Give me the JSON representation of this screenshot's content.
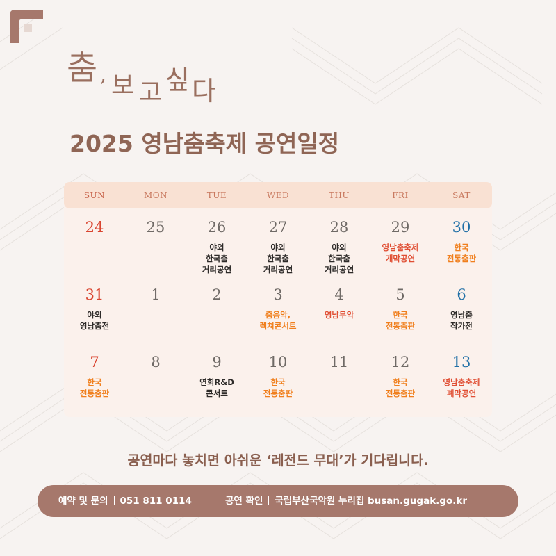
{
  "header": {
    "script_title": {
      "char1": "춤",
      "comma": ",",
      "char2": "보",
      "char3": "고",
      "char4": "싶",
      "char5": "다"
    },
    "main_title": "2025 영남춤축제 공연일정"
  },
  "calendar": {
    "weekdays": [
      "SUN",
      "MON",
      "TUE",
      "WED",
      "THU",
      "FRI",
      "SAT"
    ],
    "weeks": [
      [
        {
          "day": "24",
          "event": ""
        },
        {
          "day": "25",
          "event": ""
        },
        {
          "day": "26",
          "event": "야외\n한국춤\n거리공연"
        },
        {
          "day": "27",
          "event": "야외\n한국춤\n거리공연"
        },
        {
          "day": "28",
          "event": "야외\n한국춤\n거리공연"
        },
        {
          "day": "29",
          "event": "영남춤축제\n개막공연"
        },
        {
          "day": "30",
          "event": "한국\n전통춤판"
        }
      ],
      [
        {
          "day": "31",
          "event": "야외\n영남춤전"
        },
        {
          "day": "1",
          "event": ""
        },
        {
          "day": "2",
          "event": ""
        },
        {
          "day": "3",
          "event": "춤음악,\n렉쳐콘서트"
        },
        {
          "day": "4",
          "event": "영남무악"
        },
        {
          "day": "5",
          "event": "한국\n전통춤판"
        },
        {
          "day": "6",
          "event": "영남춤\n작가전"
        }
      ],
      [
        {
          "day": "7",
          "event": "한국\n전통춤판"
        },
        {
          "day": "8",
          "event": ""
        },
        {
          "day": "9",
          "event": "연희R&D\n콘서트"
        },
        {
          "day": "10",
          "event": "한국\n전통춤판"
        },
        {
          "day": "11",
          "event": ""
        },
        {
          "day": "12",
          "event": "한국\n전통춤판"
        },
        {
          "day": "13",
          "event": "영남춤축제\n폐막공연"
        }
      ]
    ]
  },
  "tagline": "공연마다 놓치면 아쉬운 ‘레전드 무대’가 기다립니다.",
  "footer": {
    "inquiry_label": "예약 및 문의",
    "phone": "051 811 0114",
    "check_label": "공연 확인",
    "site_text": "국립부산국악원 누리집 busan.gugak.go.kr"
  },
  "colors": {
    "background": "#f7f3f1",
    "accent_brown": "#8f6555",
    "sunday_red": "#d9442f",
    "saturday_blue": "#1f6fa6",
    "event_orange": "#f07f1d",
    "event_red": "#e04e33",
    "header_band": "#f9e1d3",
    "footer_bar": "#a6786c"
  }
}
